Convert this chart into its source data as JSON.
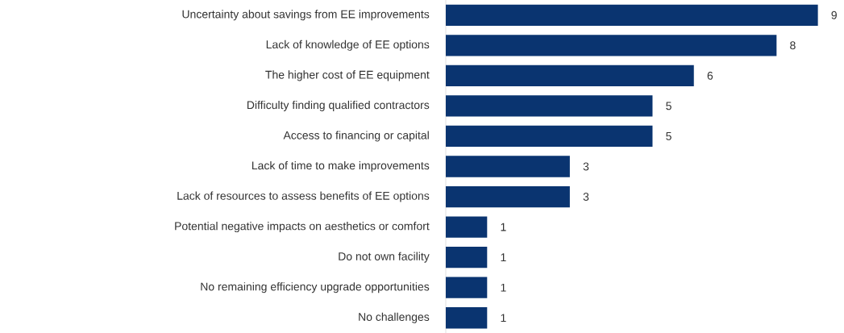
{
  "chart_data": {
    "type": "bar",
    "orientation": "horizontal",
    "categories": [
      "Uncertainty about  savings from EE improvements",
      "Lack of knowledge of EE options",
      "The higher cost of EE equipment",
      "Difficulty finding qualified contractors",
      "Access to financing or capital",
      "Lack of time to make improvements",
      "Lack of resources to assess benefits of EE options",
      "Potential negative impacts on aesthetics or comfort",
      "Do not own facility",
      "No remaining efficiency upgrade opportunities",
      "No challenges"
    ],
    "values": [
      9,
      8,
      6,
      5,
      5,
      3,
      3,
      1,
      1,
      1,
      1
    ],
    "color": "#0a3470",
    "data_labels": true
  }
}
